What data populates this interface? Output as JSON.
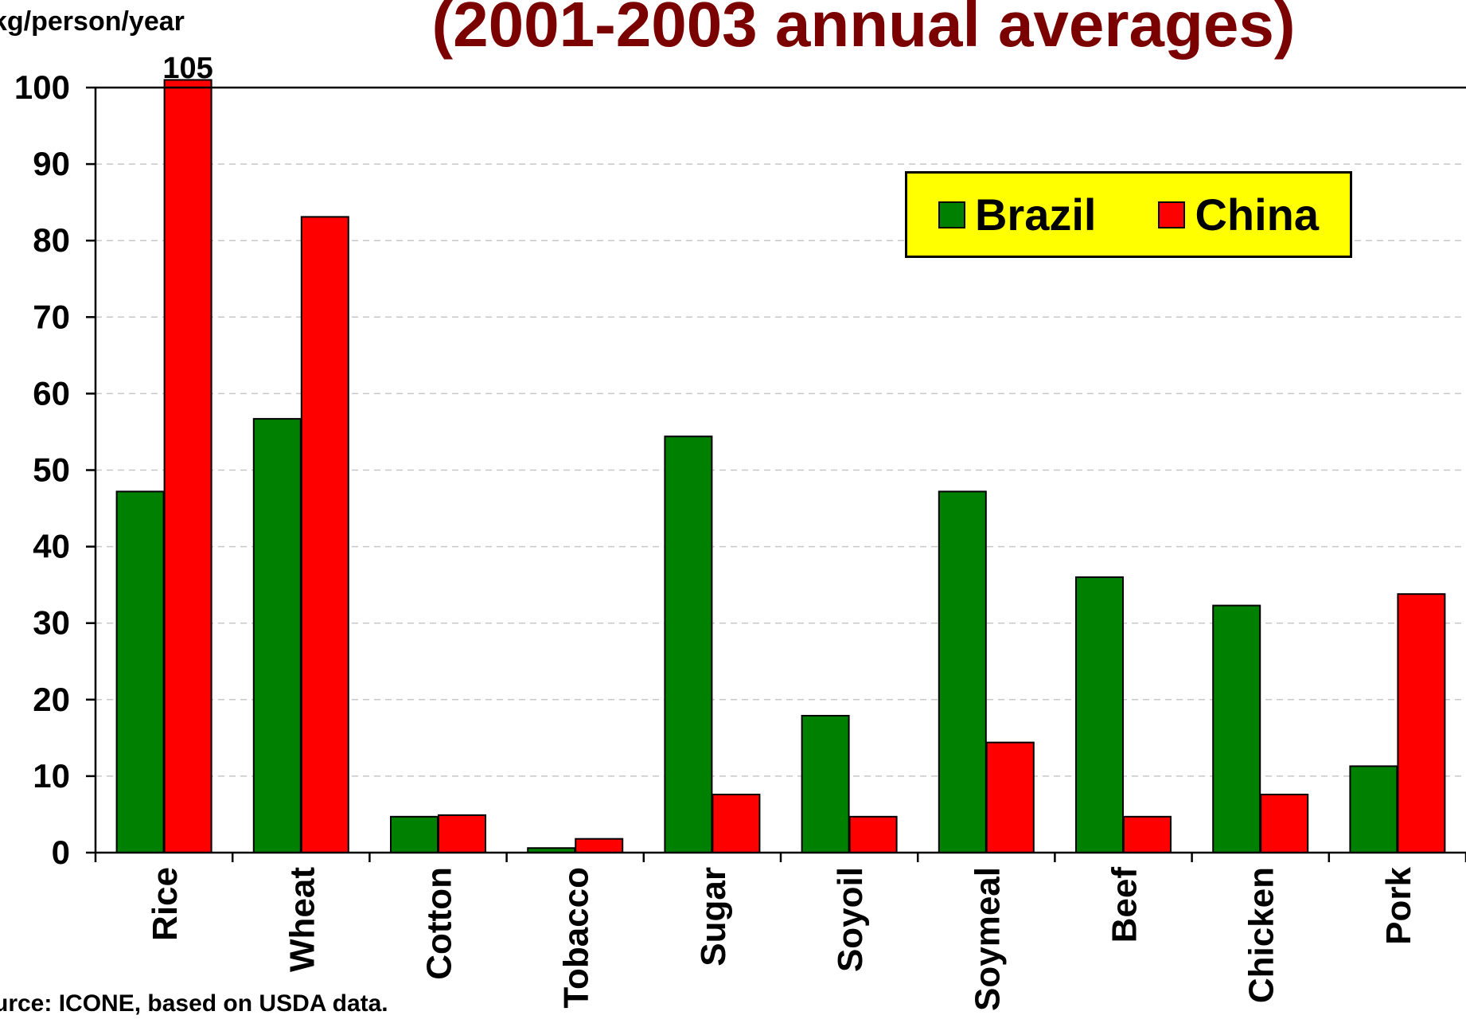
{
  "chart_data": {
    "type": "bar",
    "title": "(2001-2003 annual averages)",
    "ylabel": "kg/person/year",
    "ylim": [
      0,
      100
    ],
    "yticks": [
      0,
      10,
      20,
      30,
      40,
      50,
      60,
      70,
      80,
      90,
      100
    ],
    "categories": [
      "Rice",
      "Wheat",
      "Cotton",
      "Tobacco",
      "Sugar",
      "Soyoil",
      "Soymeal",
      "Beef",
      "Chicken",
      "Pork"
    ],
    "series": [
      {
        "name": "Brazil",
        "color": "#008000",
        "values": [
          47.2,
          56.7,
          4.7,
          0.6,
          54.4,
          17.9,
          47.2,
          36.0,
          32.3,
          11.3
        ]
      },
      {
        "name": "China",
        "color": "#ff0000",
        "values": [
          105,
          83.1,
          4.9,
          1.8,
          7.6,
          4.7,
          14.4,
          4.7,
          7.6,
          33.8
        ]
      }
    ],
    "annotations": [
      {
        "text": "105",
        "category": "Rice",
        "series": "China"
      }
    ],
    "legend_position": "top-right",
    "grid": "horizontal dashed",
    "source_note": "urce: ICONE, based on USDA data."
  }
}
